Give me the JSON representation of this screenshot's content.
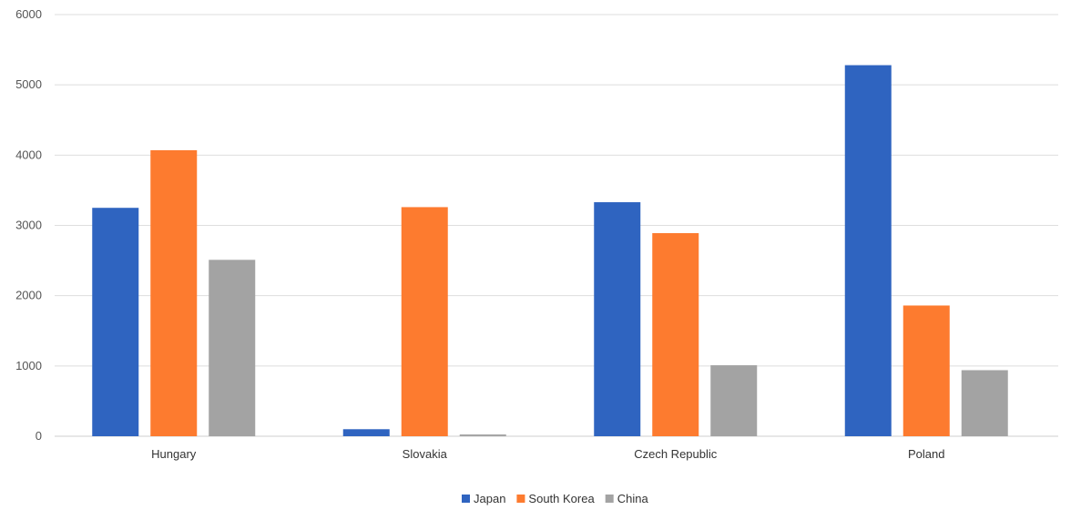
{
  "chart_data": {
    "type": "bar",
    "categories": [
      "Hungary",
      "Slovakia",
      "Czech Republic",
      "Poland"
    ],
    "series": [
      {
        "name": "Japan",
        "color": "#2f64c0",
        "values": [
          3250,
          100,
          3330,
          5280
        ]
      },
      {
        "name": "South Korea",
        "color": "#fd7b2f",
        "values": [
          4070,
          3260,
          2890,
          1860
        ]
      },
      {
        "name": "China",
        "color": "#a3a3a3",
        "values": [
          2510,
          25,
          1010,
          940
        ]
      }
    ],
    "ylim": [
      0,
      6000
    ],
    "yticks": [
      0,
      1000,
      2000,
      3000,
      4000,
      5000,
      6000
    ],
    "grid": true,
    "legend_position": "bottom"
  }
}
